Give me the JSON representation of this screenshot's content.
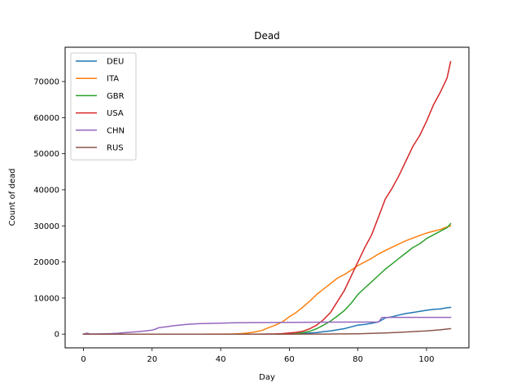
{
  "chart_data": {
    "type": "line",
    "title": "Dead",
    "xlabel": "Day",
    "ylabel": "Count of dead",
    "xlim": [
      -5.35,
      112.35
    ],
    "ylim": [
      -3800,
      79500
    ],
    "xticks": [
      0,
      20,
      40,
      60,
      80,
      100
    ],
    "yticks": [
      0,
      10000,
      20000,
      30000,
      40000,
      50000,
      60000,
      70000
    ],
    "grid": false,
    "legend_position": "upper-left",
    "series": [
      {
        "name": "DEU",
        "color": "#1f77b4",
        "points": [
          [
            0,
            0
          ],
          [
            40,
            0
          ],
          [
            50,
            2
          ],
          [
            55,
            10
          ],
          [
            60,
            50
          ],
          [
            64,
            150
          ],
          [
            66,
            300
          ],
          [
            68,
            450
          ],
          [
            70,
            700
          ],
          [
            72,
            900
          ],
          [
            74,
            1200
          ],
          [
            76,
            1500
          ],
          [
            78,
            2000
          ],
          [
            80,
            2500
          ],
          [
            82,
            2700
          ],
          [
            84,
            3000
          ],
          [
            86,
            3400
          ],
          [
            88,
            4500
          ],
          [
            90,
            4800
          ],
          [
            92,
            5300
          ],
          [
            94,
            5700
          ],
          [
            96,
            6000
          ],
          [
            98,
            6300
          ],
          [
            100,
            6600
          ],
          [
            102,
            6850
          ],
          [
            104,
            7000
          ],
          [
            106,
            7300
          ],
          [
            107,
            7400
          ]
        ]
      },
      {
        "name": "ITA",
        "color": "#ff7f0e",
        "points": [
          [
            0,
            0
          ],
          [
            35,
            0
          ],
          [
            40,
            10
          ],
          [
            44,
            50
          ],
          [
            46,
            150
          ],
          [
            48,
            300
          ],
          [
            50,
            600
          ],
          [
            52,
            1000
          ],
          [
            54,
            1800
          ],
          [
            56,
            2500
          ],
          [
            58,
            3400
          ],
          [
            60,
            4800
          ],
          [
            62,
            6000
          ],
          [
            64,
            7500
          ],
          [
            66,
            9200
          ],
          [
            68,
            11000
          ],
          [
            70,
            12500
          ],
          [
            72,
            14000
          ],
          [
            74,
            15500
          ],
          [
            76,
            16500
          ],
          [
            78,
            17700
          ],
          [
            80,
            19000
          ],
          [
            82,
            20000
          ],
          [
            84,
            21000
          ],
          [
            86,
            22200
          ],
          [
            88,
            23200
          ],
          [
            90,
            24100
          ],
          [
            92,
            25000
          ],
          [
            94,
            25900
          ],
          [
            96,
            26600
          ],
          [
            98,
            27300
          ],
          [
            100,
            28000
          ],
          [
            102,
            28500
          ],
          [
            104,
            29000
          ],
          [
            106,
            29700
          ],
          [
            107,
            30000
          ]
        ]
      },
      {
        "name": "GBR",
        "color": "#2ca02c",
        "points": [
          [
            0,
            0
          ],
          [
            50,
            0
          ],
          [
            58,
            20
          ],
          [
            62,
            150
          ],
          [
            64,
            400
          ],
          [
            66,
            800
          ],
          [
            68,
            1500
          ],
          [
            70,
            2500
          ],
          [
            72,
            3600
          ],
          [
            74,
            5000
          ],
          [
            76,
            6500
          ],
          [
            78,
            8500
          ],
          [
            80,
            11000
          ],
          [
            82,
            12800
          ],
          [
            84,
            14500
          ],
          [
            86,
            16300
          ],
          [
            88,
            18000
          ],
          [
            90,
            19500
          ],
          [
            92,
            21000
          ],
          [
            94,
            22500
          ],
          [
            96,
            24000
          ],
          [
            98,
            25000
          ],
          [
            100,
            26500
          ],
          [
            102,
            27500
          ],
          [
            104,
            28500
          ],
          [
            106,
            29500
          ],
          [
            107,
            30600
          ]
        ]
      },
      {
        "name": "USA",
        "color": "#d62728",
        "points": [
          [
            0,
            0
          ],
          [
            50,
            0
          ],
          [
            56,
            50
          ],
          [
            58,
            150
          ],
          [
            60,
            300
          ],
          [
            62,
            500
          ],
          [
            64,
            800
          ],
          [
            66,
            1500
          ],
          [
            68,
            2500
          ],
          [
            70,
            4000
          ],
          [
            72,
            6000
          ],
          [
            74,
            9000
          ],
          [
            76,
            12000
          ],
          [
            78,
            16000
          ],
          [
            80,
            20000
          ],
          [
            82,
            24000
          ],
          [
            84,
            27500
          ],
          [
            86,
            32500
          ],
          [
            88,
            37500
          ],
          [
            90,
            40500
          ],
          [
            92,
            44000
          ],
          [
            94,
            48000
          ],
          [
            96,
            52000
          ],
          [
            98,
            55000
          ],
          [
            100,
            59000
          ],
          [
            102,
            63500
          ],
          [
            104,
            67000
          ],
          [
            106,
            71000
          ],
          [
            107,
            75500
          ]
        ]
      },
      {
        "name": "CHN",
        "color": "#9467bd",
        "points": [
          [
            0,
            17
          ],
          [
            1,
            260
          ],
          [
            2,
            30
          ],
          [
            4,
            50
          ],
          [
            6,
            100
          ],
          [
            8,
            150
          ],
          [
            10,
            250
          ],
          [
            12,
            400
          ],
          [
            14,
            550
          ],
          [
            16,
            700
          ],
          [
            18,
            900
          ],
          [
            20,
            1100
          ],
          [
            21,
            1400
          ],
          [
            22,
            1800
          ],
          [
            24,
            2000
          ],
          [
            26,
            2300
          ],
          [
            28,
            2500
          ],
          [
            30,
            2700
          ],
          [
            32,
            2800
          ],
          [
            34,
            2900
          ],
          [
            36,
            2950
          ],
          [
            38,
            3000
          ],
          [
            40,
            3050
          ],
          [
            44,
            3150
          ],
          [
            50,
            3200
          ],
          [
            60,
            3250
          ],
          [
            70,
            3300
          ],
          [
            80,
            3330
          ],
          [
            86,
            3340
          ],
          [
            87,
            4630
          ],
          [
            90,
            4632
          ],
          [
            100,
            4634
          ],
          [
            107,
            4637
          ]
        ]
      },
      {
        "name": "RUS",
        "color": "#8c564b",
        "points": [
          [
            0,
            0
          ],
          [
            60,
            0
          ],
          [
            70,
            20
          ],
          [
            76,
            50
          ],
          [
            80,
            100
          ],
          [
            84,
            200
          ],
          [
            88,
            300
          ],
          [
            92,
            500
          ],
          [
            96,
            700
          ],
          [
            100,
            900
          ],
          [
            104,
            1200
          ],
          [
            107,
            1500
          ]
        ]
      }
    ]
  }
}
